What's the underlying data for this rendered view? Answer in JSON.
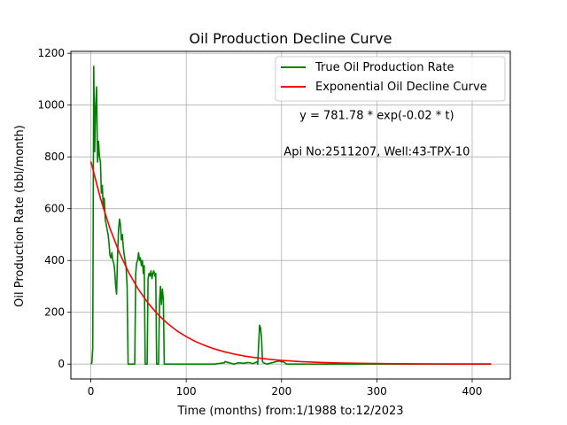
{
  "chart_data": {
    "type": "line",
    "title": "Oil Production Decline Curve",
    "xlabel": "Time (months) from:1/1988 to:12/2023",
    "ylabel": "Oil Production Rate (bbl/month)",
    "xlim": [
      -21,
      440
    ],
    "ylim": [
      -57.5,
      1207.5
    ],
    "x_ticks": [
      0,
      100,
      200,
      300,
      400
    ],
    "y_ticks": [
      0,
      200,
      400,
      600,
      800,
      1000,
      1200
    ],
    "grid": true,
    "legend_position": "top-right",
    "annotations": [
      {
        "text": "y = 781.78 * exp(-0.02 * t)",
        "x": 300,
        "y": 960
      },
      {
        "text": "Api No:2511207, Well:43-TPX-10",
        "x": 300,
        "y": 820
      }
    ],
    "series": [
      {
        "name": "True Oil Production Rate",
        "color": "#008000",
        "style": "line",
        "x": [
          0,
          1,
          2,
          3,
          4,
          5,
          6,
          7,
          8,
          9,
          10,
          11,
          12,
          13,
          14,
          15,
          16,
          17,
          18,
          19,
          20,
          21,
          22,
          23,
          24,
          25,
          26,
          27,
          28,
          29,
          30,
          31,
          32,
          33,
          34,
          35,
          36,
          37,
          38,
          39,
          40,
          41,
          42,
          43,
          44,
          45,
          46,
          47,
          48,
          49,
          50,
          51,
          52,
          53,
          54,
          55,
          56,
          57,
          58,
          59,
          60,
          61,
          62,
          63,
          64,
          65,
          66,
          67,
          68,
          69,
          70,
          71,
          72,
          73,
          74,
          75,
          76,
          77,
          78,
          79,
          80,
          81,
          82,
          83,
          84,
          85,
          90,
          100,
          110,
          120,
          130,
          140,
          141,
          142,
          145,
          148,
          150,
          155,
          160,
          165,
          170,
          172,
          174,
          175,
          176,
          177,
          178,
          179,
          180,
          181,
          185,
          190,
          195,
          198,
          200,
          202,
          205,
          210,
          250,
          300,
          350,
          400,
          420
        ],
        "y": [
          0,
          5,
          60,
          1150,
          820,
          1000,
          1070,
          780,
          860,
          800,
          780,
          660,
          690,
          600,
          640,
          560,
          540,
          520,
          500,
          470,
          420,
          410,
          430,
          400,
          390,
          360,
          300,
          270,
          420,
          520,
          560,
          540,
          480,
          500,
          450,
          420,
          400,
          370,
          300,
          0,
          0,
          0,
          0,
          0,
          0,
          0,
          0,
          350,
          390,
          400,
          430,
          400,
          410,
          380,
          400,
          350,
          380,
          0,
          0,
          0,
          330,
          350,
          340,
          360,
          330,
          350,
          360,
          340,
          350,
          0,
          0,
          0,
          240,
          300,
          230,
          290,
          250,
          0,
          0,
          0,
          0,
          0,
          0,
          0,
          0,
          0,
          0,
          0,
          0,
          0,
          0,
          5,
          10,
          8,
          5,
          2,
          0,
          5,
          3,
          6,
          2,
          5,
          8,
          0,
          80,
          150,
          140,
          100,
          10,
          5,
          0,
          5,
          10,
          12,
          8,
          10,
          0,
          0,
          0,
          0,
          0,
          0,
          0
        ]
      },
      {
        "name": "Exponential Oil Decline Curve",
        "color": "#ff0000",
        "style": "line",
        "equation": "781.78 * exp(-0.02 * t)",
        "x": [
          0,
          10,
          20,
          30,
          40,
          50,
          60,
          70,
          80,
          90,
          100,
          110,
          120,
          130,
          140,
          150,
          160,
          170,
          180,
          190,
          200,
          220,
          240,
          260,
          280,
          300,
          320,
          340,
          360,
          380,
          400,
          420
        ],
        "y": [
          781.78,
          640.07,
          524.05,
          429.06,
          351.29,
          287.62,
          235.48,
          192.8,
          157.85,
          129.24,
          105.81,
          86.63,
          70.93,
          58.07,
          47.55,
          38.93,
          31.87,
          26.09,
          21.37,
          17.49,
          14.32,
          9.6,
          6.43,
          4.31,
          2.89,
          1.94,
          1.3,
          0.87,
          0.58,
          0.39,
          0.26,
          0.18
        ]
      }
    ]
  }
}
